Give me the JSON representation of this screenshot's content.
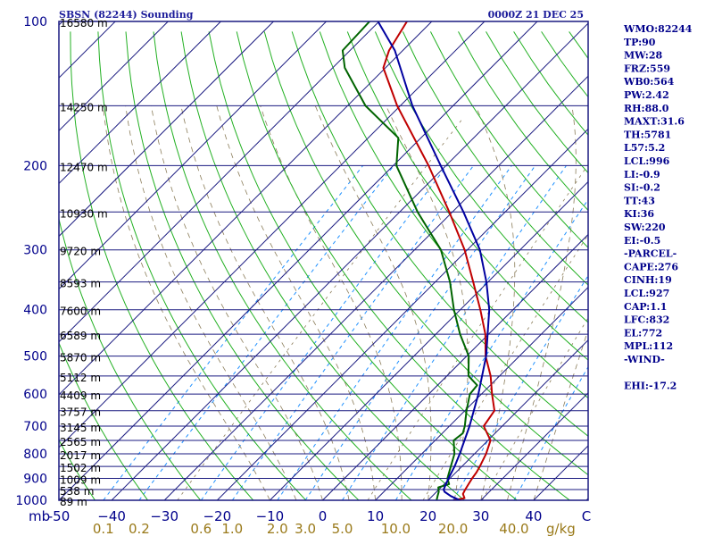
{
  "header": {
    "station": "SBSN (82244) Sounding",
    "datetime": "0000Z 21 DEC 25"
  },
  "axes": {
    "pressure_unit_label": "mb",
    "mixing_ratio_unit_label": "g/kg"
  },
  "indices": [
    "WMO:82244",
    "TP:90",
    "MW:28",
    "FRZ:559",
    "WB0:564",
    "PW:2.42",
    "RH:88.0",
    "MAXT:31.6",
    "TH:5781",
    "L57:5.2",
    "LCL:996",
    "LI:-0.9",
    "SI:-0.2",
    "TT:43",
    "KI:36",
    "SW:220",
    "EI:-0.5",
    "-PARCEL-",
    "CAPE:276",
    "CINH:19",
    "LCL:927",
    "CAP:1.1",
    "LFC:832",
    "EL:772",
    "MPL:112",
    "-WIND-",
    "",
    "EHI:-17.2"
  ],
  "chart_data": {
    "type": "line",
    "title": "SBSN (82244) Sounding",
    "subtitle": "0000Z 21 DEC 25",
    "chart_kind": "skew-T log-P",
    "ylabel": "mb",
    "xlabel": "C",
    "ylim": [
      1000,
      100
    ],
    "xlim": [
      -50,
      50
    ],
    "pressure_ticks": [
      {
        "value": 100,
        "label": "100"
      },
      {
        "value": 200,
        "label": "200"
      },
      {
        "value": 300,
        "label": "300"
      },
      {
        "value": 400,
        "label": "400"
      },
      {
        "value": 500,
        "label": "500"
      },
      {
        "value": 600,
        "label": "600"
      },
      {
        "value": 700,
        "label": "700"
      },
      {
        "value": 800,
        "label": "800"
      },
      {
        "value": 900,
        "label": "900"
      },
      {
        "value": 1000,
        "label": "1000"
      }
    ],
    "temperature_ticks": [
      {
        "value": -50,
        "label": "-50"
      },
      {
        "value": -40,
        "label": "−40"
      },
      {
        "value": -30,
        "label": "−30"
      },
      {
        "value": -20,
        "label": "−20"
      },
      {
        "value": -10,
        "label": "−10"
      },
      {
        "value": 0,
        "label": "0"
      },
      {
        "value": 10,
        "label": "10"
      },
      {
        "value": 20,
        "label": "20"
      },
      {
        "value": 30,
        "label": "30"
      },
      {
        "value": 40,
        "label": "40"
      },
      {
        "value": 50,
        "label": "C"
      }
    ],
    "height_levels": [
      {
        "p": 100,
        "label": "16580 m"
      },
      {
        "p": 150,
        "label": "14250 m"
      },
      {
        "p": 200,
        "label": "12470 m"
      },
      {
        "p": 250,
        "label": "10930 m"
      },
      {
        "p": 300,
        "label": "9720 m"
      },
      {
        "p": 350,
        "label": "8593 m"
      },
      {
        "p": 400,
        "label": "7600 m"
      },
      {
        "p": 450,
        "label": "6589 m"
      },
      {
        "p": 500,
        "label": "5870 m"
      },
      {
        "p": 550,
        "label": "5112 m"
      },
      {
        "p": 600,
        "label": "4409 m"
      },
      {
        "p": 650,
        "label": "3757 m"
      },
      {
        "p": 700,
        "label": "3145 m"
      },
      {
        "p": 750,
        "label": "2565 m"
      },
      {
        "p": 800,
        "label": "2017 m"
      },
      {
        "p": 850,
        "label": "1502 m"
      },
      {
        "p": 900,
        "label": "1009 m"
      },
      {
        "p": 950,
        "label": "538 m"
      },
      {
        "p": 1000,
        "label": "89 m"
      }
    ],
    "mixing_ratio_ticks": [
      {
        "value": 0.1,
        "label": "0.1"
      },
      {
        "value": 0.2,
        "label": "0.2"
      },
      {
        "value": 0.6,
        "label": "0.6"
      },
      {
        "value": 1.0,
        "label": "1.0"
      },
      {
        "value": 2.0,
        "label": "2.0"
      },
      {
        "value": 3.0,
        "label": "3.0"
      },
      {
        "value": 5.0,
        "label": "5.0"
      },
      {
        "value": 10.0,
        "label": "10.0"
      },
      {
        "value": 20.0,
        "label": "20.0"
      },
      {
        "value": 40.0,
        "label": "40.0"
      }
    ],
    "series": [
      {
        "name": "Temperature",
        "color": "#c00000",
        "points": [
          [
            1000,
            24.8
          ],
          [
            990,
            26.5
          ],
          [
            970,
            25.4
          ],
          [
            950,
            25.0
          ],
          [
            925,
            24.6
          ],
          [
            900,
            24.2
          ],
          [
            875,
            23.9
          ],
          [
            850,
            23.4
          ],
          [
            800,
            22.2
          ],
          [
            750,
            20.5
          ],
          [
            700,
            16.5
          ],
          [
            650,
            15.6
          ],
          [
            600,
            12.0
          ],
          [
            550,
            8.3
          ],
          [
            500,
            3.6
          ],
          [
            450,
            -0.6
          ],
          [
            400,
            -6.2
          ],
          [
            350,
            -12.8
          ],
          [
            300,
            -20.5
          ],
          [
            250,
            -30.6
          ],
          [
            200,
            -43.3
          ],
          [
            150,
            -60.6
          ],
          [
            125,
            -70.4
          ],
          [
            115,
            -72.6
          ],
          [
            100,
            -74.7
          ]
        ]
      },
      {
        "name": "Dewpoint",
        "color": "#006400",
        "points": [
          [
            1000,
            21.6
          ],
          [
            980,
            21.0
          ],
          [
            960,
            20.4
          ],
          [
            940,
            19.5
          ],
          [
            925,
            20.9
          ],
          [
            900,
            19.5
          ],
          [
            850,
            17.9
          ],
          [
            800,
            16.2
          ],
          [
            750,
            13.5
          ],
          [
            725,
            13.9
          ],
          [
            700,
            12.9
          ],
          [
            650,
            10.3
          ],
          [
            600,
            7.8
          ],
          [
            575,
            7.5
          ],
          [
            550,
            4.1
          ],
          [
            500,
            0.4
          ],
          [
            450,
            -5.4
          ],
          [
            400,
            -11.2
          ],
          [
            350,
            -17.2
          ],
          [
            300,
            -25.0
          ],
          [
            250,
            -36.6
          ],
          [
            200,
            -49.4
          ],
          [
            175,
            -54.3
          ],
          [
            150,
            -66.6
          ],
          [
            125,
            -77.7
          ],
          [
            115,
            -81.4
          ],
          [
            100,
            -81.8
          ]
        ]
      },
      {
        "name": "Parcel",
        "color": "#0000a0",
        "points": [
          [
            1000,
            26.0
          ],
          [
            980,
            23.5
          ],
          [
            960,
            21.5
          ],
          [
            950,
            20.9
          ],
          [
            900,
            19.7
          ],
          [
            850,
            18.6
          ],
          [
            800,
            17.2
          ],
          [
            700,
            13.8
          ],
          [
            600,
            9.4
          ],
          [
            500,
            3.7
          ],
          [
            400,
            -4.5
          ],
          [
            350,
            -10.3
          ],
          [
            300,
            -17.6
          ],
          [
            250,
            -27.9
          ],
          [
            200,
            -41.0
          ],
          [
            150,
            -57.7
          ],
          [
            115,
            -71.5
          ],
          [
            100,
            -80.2
          ]
        ]
      }
    ]
  }
}
